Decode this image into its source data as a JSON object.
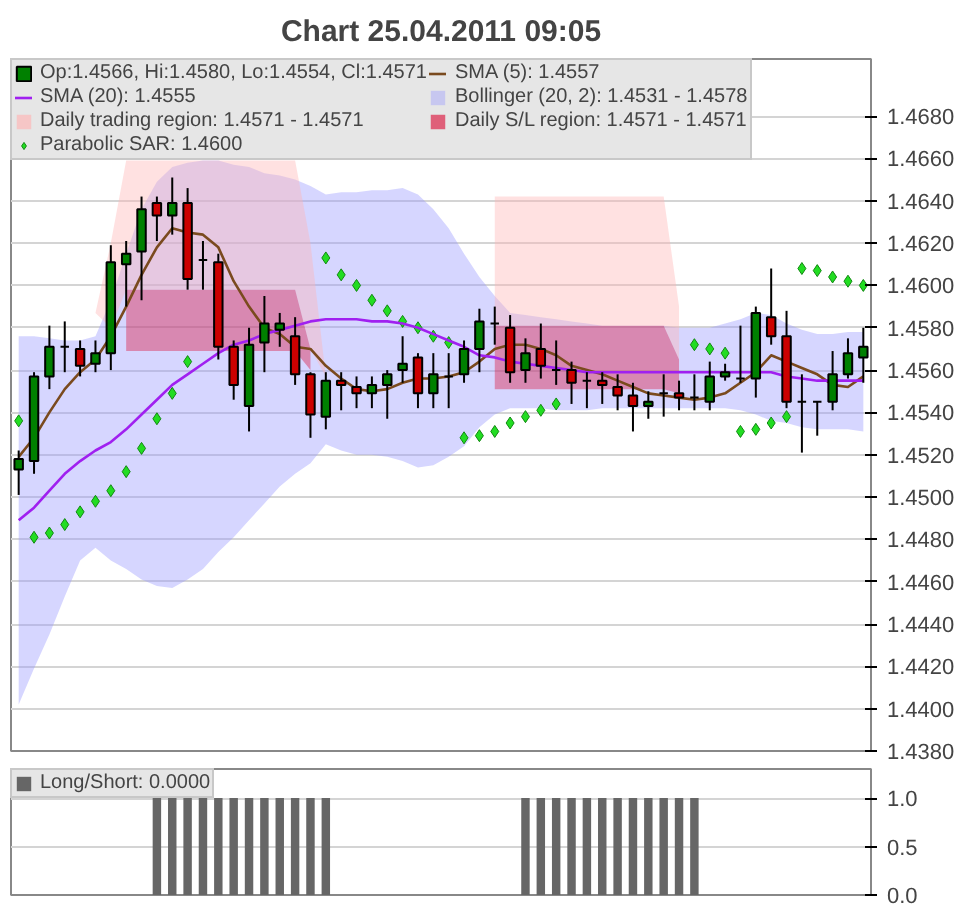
{
  "chart_data": [
    {
      "type": "candlestick",
      "title": "Chart 25.04.2011 09:05",
      "categories": [
        null,
        null,
        null,
        null,
        null,
        null,
        null,
        null,
        null,
        null,
        null,
        null,
        null,
        null,
        null,
        null,
        null,
        null,
        null,
        null,
        null,
        null,
        null,
        null,
        null,
        null,
        null,
        null,
        null,
        null,
        null,
        null,
        null,
        null,
        null,
        null,
        null,
        null,
        null,
        null,
        null,
        null,
        null,
        null,
        null,
        null,
        null,
        null,
        null,
        null,
        null,
        null,
        null,
        null,
        null,
        null
      ],
      "ylim": [
        1.438,
        1.4707
      ],
      "yticks": [
        {
          "value": 1.438,
          "label": "1.4380"
        },
        {
          "value": 1.44,
          "label": "1.4400"
        },
        {
          "value": 1.442,
          "label": "1.4420"
        },
        {
          "value": 1.444,
          "label": "1.4440"
        },
        {
          "value": 1.446,
          "label": "1.4460"
        },
        {
          "value": 1.448,
          "label": "1.4480"
        },
        {
          "value": 1.45,
          "label": "1.4500"
        },
        {
          "value": 1.452,
          "label": "1.4520"
        },
        {
          "value": 1.454,
          "label": "1.4540"
        },
        {
          "value": 1.456,
          "label": "1.4560"
        },
        {
          "value": 1.458,
          "label": "1.4580"
        },
        {
          "value": 1.46,
          "label": "1.4600"
        },
        {
          "value": 1.462,
          "label": "1.4620"
        },
        {
          "value": 1.464,
          "label": "1.4640"
        },
        {
          "value": 1.466,
          "label": "1.4660"
        },
        {
          "value": 1.468,
          "label": "1.4680"
        }
      ],
      "grid": "y",
      "legend": "top left",
      "series": [
        {
          "name": "Bollinger (20, 2): 1.4531 - 1.4578",
          "type": "line",
          "color": "#9999ff",
          "values": [
            null,
            null,
            null,
            null,
            null,
            null,
            null,
            null,
            null,
            null,
            null,
            null,
            null,
            null,
            null,
            null,
            null,
            null,
            null,
            null,
            null,
            null,
            null,
            null,
            null,
            null,
            null,
            null,
            null,
            null,
            null,
            null,
            null,
            null,
            null,
            null,
            null,
            null,
            null,
            null,
            null,
            null,
            null,
            null,
            null,
            null,
            null,
            null,
            null,
            null,
            null,
            null,
            null,
            null,
            null,
            null
          ],
          "upper": [
            1.4576,
            1.4576,
            1.4575,
            1.4574,
            1.4574,
            1.4576,
            1.4593,
            1.4615,
            1.4636,
            1.4649,
            1.4656,
            1.4658,
            1.4659,
            1.4659,
            1.4657,
            1.4656,
            1.4653,
            1.4652,
            1.465,
            1.4647,
            1.4643,
            1.4644,
            1.4644,
            1.4645,
            1.4645,
            1.4646,
            1.4643,
            1.4636,
            1.4627,
            1.4615,
            1.4604,
            1.4595,
            1.4587,
            1.4586,
            1.4585,
            1.4584,
            1.4583,
            1.4582,
            1.4581,
            1.4581,
            1.4581,
            1.4581,
            1.4581,
            1.458,
            1.458,
            1.458,
            1.4582,
            1.4584,
            1.4587,
            1.4586,
            1.4582,
            1.4579,
            1.4577,
            1.4577,
            1.4578,
            1.4578
          ],
          "lower": [
            1.4402,
            1.4419,
            1.4435,
            1.4453,
            1.447,
            1.4476,
            1.447,
            1.4466,
            1.4461,
            1.4458,
            1.4457,
            1.4461,
            1.4466,
            1.4474,
            1.4481,
            1.4489,
            1.4497,
            1.4505,
            1.4511,
            1.4516,
            1.4525,
            1.4522,
            1.452,
            1.452,
            1.4519,
            1.4517,
            1.4514,
            1.4515,
            1.4519,
            1.4524,
            1.4533,
            1.4539,
            1.4542,
            1.4542,
            1.4542,
            1.4541,
            1.4541,
            1.4541,
            1.4542,
            1.4542,
            1.4542,
            1.4542,
            1.4542,
            1.4542,
            1.4542,
            1.4542,
            1.4542,
            1.4541,
            1.4539,
            1.4536,
            1.4535,
            1.4533,
            1.4532,
            1.4532,
            1.4532,
            1.4531
          ]
        },
        {
          "name": "Parabolic SAR: 1.4600",
          "type": "scatter",
          "marker": "diamond",
          "color": "#22dd22",
          "values": [
            1.4536,
            1.4481,
            1.4483,
            1.4487,
            1.4493,
            1.4498,
            1.4503,
            1.4512,
            1.4523,
            1.4537,
            1.4549,
            1.4564,
            null,
            null,
            null,
            null,
            null,
            null,
            null,
            null,
            1.4613,
            1.4605,
            1.46,
            1.4593,
            1.4588,
            1.4583,
            1.458,
            1.4576,
            1.4573,
            1.4528,
            1.4529,
            1.4531,
            1.4535,
            1.4538,
            1.4541,
            1.4544,
            null,
            null,
            null,
            null,
            null,
            null,
            null,
            null,
            1.4572,
            1.457,
            1.4568,
            1.4531,
            1.4532,
            1.4535,
            1.4538,
            1.4608,
            1.4607,
            1.4604,
            1.4602,
            1.46
          ]
        },
        {
          "name": "Daily trading region: 1.4571 - 1.4571",
          "type": "line",
          "color": "#ffb4b4",
          "values": [
            null,
            null,
            null,
            null,
            null,
            null,
            null,
            null,
            null,
            null,
            null,
            null,
            null,
            null,
            null,
            null,
            null,
            null,
            null,
            null,
            null,
            null,
            null,
            null,
            null,
            null,
            null,
            null,
            null,
            null,
            null,
            null,
            null,
            null,
            null,
            null,
            null,
            null,
            null,
            null,
            null,
            null,
            null,
            null,
            null,
            null,
            null,
            null,
            null,
            null,
            null,
            null,
            null,
            null,
            null,
            null
          ],
          "upper": [
            null,
            null,
            null,
            null,
            null,
            1.4587,
            1.462,
            1.4659,
            1.4659,
            1.4659,
            1.4659,
            1.4659,
            1.4659,
            1.4659,
            1.4659,
            1.4659,
            1.4659,
            1.4659,
            1.4659,
            1.462,
            1.4557,
            null,
            null,
            null,
            null,
            null,
            null,
            null,
            null,
            null,
            null,
            1.4642,
            1.4642,
            1.4642,
            1.4642,
            1.4642,
            1.4642,
            1.4642,
            1.4642,
            1.4642,
            1.4642,
            1.4642,
            1.4642,
            1.459,
            null,
            null,
            null,
            null,
            null,
            null,
            null,
            null,
            null,
            null,
            null,
            null
          ],
          "lower": [
            null,
            null,
            null,
            null,
            null,
            1.4587,
            1.458,
            1.4598,
            1.4598,
            1.4598,
            1.4598,
            1.4598,
            1.4598,
            1.4598,
            1.4598,
            1.4598,
            1.4598,
            1.4598,
            1.4598,
            1.457,
            1.4557,
            null,
            null,
            null,
            null,
            null,
            null,
            null,
            null,
            null,
            null,
            1.4581,
            1.4581,
            1.4581,
            1.4581,
            1.4581,
            1.4581,
            1.4581,
            1.4581,
            1.4581,
            1.4581,
            1.4581,
            1.4581,
            1.4565,
            null,
            null,
            null,
            null,
            null,
            null,
            null,
            null,
            null,
            null,
            null,
            null
          ]
        },
        {
          "name": "Daily S/L region: 1.4571 - 1.4571",
          "type": "line",
          "color": "#dc143c",
          "values": [
            null,
            null,
            null,
            null,
            null,
            null,
            null,
            null,
            null,
            null,
            null,
            null,
            null,
            null,
            null,
            null,
            null,
            null,
            null,
            null,
            null,
            null,
            null,
            null,
            null,
            null,
            null,
            null,
            null,
            null,
            null,
            null,
            null,
            null,
            null,
            null,
            null,
            null,
            null,
            null,
            null,
            null,
            null,
            null,
            null,
            null,
            null,
            null,
            null,
            null,
            null,
            null,
            null,
            null,
            null,
            null
          ],
          "upper": [
            null,
            null,
            null,
            null,
            null,
            null,
            null,
            1.4598,
            1.4598,
            1.4598,
            1.4598,
            1.4598,
            1.4598,
            1.4598,
            1.4598,
            1.4598,
            1.4598,
            1.4598,
            1.4598,
            1.457,
            null,
            null,
            null,
            null,
            null,
            null,
            null,
            null,
            null,
            null,
            null,
            1.4581,
            1.4581,
            1.4581,
            1.4581,
            1.4581,
            1.4581,
            1.4581,
            1.4581,
            1.4581,
            1.4581,
            1.4581,
            1.4581,
            1.4565,
            null,
            null,
            null,
            null,
            null,
            null,
            null,
            null,
            null,
            null,
            null,
            null
          ],
          "lower": [
            null,
            null,
            null,
            null,
            null,
            null,
            null,
            1.4569,
            1.4569,
            1.4569,
            1.4569,
            1.4569,
            1.4569,
            1.4569,
            1.4569,
            1.4569,
            1.4569,
            1.4569,
            1.4569,
            1.456,
            null,
            null,
            null,
            null,
            null,
            null,
            null,
            null,
            null,
            null,
            null,
            1.4551,
            1.4551,
            1.4551,
            1.4551,
            1.4551,
            1.4551,
            1.4551,
            1.4551,
            1.4551,
            1.4551,
            1.4551,
            1.4551,
            1.4549,
            null,
            null,
            null,
            null,
            null,
            null,
            null,
            null,
            null,
            null,
            null,
            null
          ]
        },
        {
          "name": "SMA (5): 1.4557",
          "type": "line",
          "color": "#7a4a1e",
          "values": [
            1.4519,
            1.4528,
            1.454,
            1.4551,
            1.4559,
            1.4565,
            1.4576,
            1.459,
            1.4605,
            1.4618,
            1.4627,
            1.4625,
            1.4624,
            1.4618,
            1.4602,
            1.459,
            1.458,
            1.4577,
            1.4571,
            1.457,
            1.4562,
            1.4556,
            1.4551,
            1.455,
            1.4551,
            1.4554,
            1.4556,
            1.4556,
            1.4557,
            1.4559,
            1.4564,
            1.457,
            1.4572,
            1.4572,
            1.457,
            1.4567,
            1.4562,
            1.456,
            1.4558,
            1.4555,
            1.4552,
            1.4549,
            1.4548,
            1.4547,
            1.4546,
            1.4547,
            1.4549,
            1.4554,
            1.4559,
            1.4567,
            1.4564,
            1.4561,
            1.4558,
            1.4553,
            1.4552,
            1.4557
          ]
        },
        {
          "name": "SMA (20): 1.4555",
          "type": "line",
          "color": "#a020f0",
          "values": [
            1.4489,
            1.4495,
            1.4503,
            1.4511,
            1.4517,
            1.4522,
            1.4526,
            1.4532,
            1.4539,
            1.4546,
            1.4553,
            1.4558,
            1.4563,
            1.4568,
            1.4572,
            1.4574,
            1.4577,
            1.4579,
            1.4581,
            1.4583,
            1.4584,
            1.4584,
            1.4584,
            1.4583,
            1.4583,
            1.4582,
            1.458,
            1.4577,
            1.4574,
            1.4571,
            1.4567,
            1.4566,
            1.4564,
            1.4563,
            1.4562,
            1.4561,
            1.456,
            1.4559,
            1.4559,
            1.4559,
            1.4559,
            1.4559,
            1.4559,
            1.4559,
            1.4559,
            1.4559,
            1.4559,
            1.4559,
            1.4559,
            1.4559,
            1.4557,
            1.4556,
            1.4555,
            1.4555,
            1.4555,
            1.4555
          ]
        },
        {
          "name": "Op:1.4566, Hi:1.4580, Lo:1.4554, Cl:1.4571",
          "type": "candlestick",
          "color": "#006600",
          "colors": [
            "#008000",
            "#008000",
            "#008000",
            "#000000",
            "#cc0000",
            "#008000",
            "#008000",
            "#008000",
            "#008000",
            "#cc0000",
            "#008000",
            "#cc0000",
            "#000000",
            "#cc0000",
            "#cc0000",
            "#008000",
            "#008000",
            "#008000",
            "#cc0000",
            "#cc0000",
            "#008000",
            "#cc0000",
            "#cc0000",
            "#008000",
            "#008000",
            "#008000",
            "#cc0000",
            "#008000",
            "#000000",
            "#008000",
            "#008000",
            "#000000",
            "#cc0000",
            "#008000",
            "#cc0000",
            "#000000",
            "#cc0000",
            "#000000",
            "#cc0000",
            "#cc0000",
            "#cc0000",
            "#008000",
            "#000000",
            "#cc0000",
            "#000000",
            "#008000",
            "#008000",
            "#000000",
            "#008000",
            "#cc0000",
            "#cc0000",
            "#000000",
            "#000000",
            "#008000",
            "#008000",
            "#008000"
          ],
          "ohlc": [
            [
              1.4513,
              1.4522,
              1.4501,
              1.4518
            ],
            [
              1.4517,
              1.4559,
              1.4511,
              1.4557
            ],
            [
              1.4557,
              1.4581,
              1.4551,
              1.4571
            ],
            [
              1.4571,
              1.4583,
              1.4559,
              1.4571
            ],
            [
              1.457,
              1.4574,
              1.4557,
              1.4562
            ],
            [
              1.4563,
              1.4574,
              1.4559,
              1.4568
            ],
            [
              1.4568,
              1.4619,
              1.456,
              1.4611
            ],
            [
              1.461,
              1.4621,
              1.459,
              1.4615
            ],
            [
              1.4616,
              1.4642,
              1.4593,
              1.4636
            ],
            [
              1.4639,
              1.4642,
              1.4621,
              1.4633
            ],
            [
              1.4633,
              1.4651,
              1.4624,
              1.4639
            ],
            [
              1.4639,
              1.4646,
              1.4598,
              1.4603
            ],
            [
              1.4612,
              1.4621,
              1.4598,
              1.4612
            ],
            [
              1.4611,
              1.4615,
              1.4565,
              1.4571
            ],
            [
              1.4571,
              1.4574,
              1.4546,
              1.4553
            ],
            [
              1.4543,
              1.458,
              1.4531,
              1.4572
            ],
            [
              1.4573,
              1.4595,
              1.4559,
              1.4582
            ],
            [
              1.4579,
              1.4587,
              1.4571,
              1.4582
            ],
            [
              1.4576,
              1.4585,
              1.4553,
              1.4558
            ],
            [
              1.4558,
              1.4559,
              1.4528,
              1.4539
            ],
            [
              1.4538,
              1.4559,
              1.4532,
              1.4555
            ],
            [
              1.4555,
              1.4559,
              1.4541,
              1.4553
            ],
            [
              1.4552,
              1.4557,
              1.4542,
              1.4549
            ],
            [
              1.4549,
              1.4557,
              1.4542,
              1.4553
            ],
            [
              1.4553,
              1.456,
              1.4537,
              1.4558
            ],
            [
              1.456,
              1.4576,
              1.4554,
              1.4563
            ],
            [
              1.4566,
              1.4568,
              1.4542,
              1.4549
            ],
            [
              1.4549,
              1.4568,
              1.4542,
              1.4558
            ],
            [
              1.4557,
              1.4568,
              1.4542,
              1.4557
            ],
            [
              1.4558,
              1.4574,
              1.4554,
              1.457
            ],
            [
              1.457,
              1.4589,
              1.4559,
              1.4583
            ],
            [
              1.4582,
              1.459,
              1.4572,
              1.4582
            ],
            [
              1.458,
              1.4586,
              1.4554,
              1.4559
            ],
            [
              1.456,
              1.4575,
              1.4554,
              1.4568
            ],
            [
              1.457,
              1.4582,
              1.4556,
              1.4562
            ],
            [
              1.456,
              1.4574,
              1.4553,
              1.456
            ],
            [
              1.456,
              1.4564,
              1.4544,
              1.4554
            ],
            [
              1.4555,
              1.4559,
              1.4542,
              1.4555
            ],
            [
              1.4555,
              1.4559,
              1.4544,
              1.4553
            ],
            [
              1.4552,
              1.4558,
              1.4541,
              1.4548
            ],
            [
              1.4548,
              1.4554,
              1.4531,
              1.4543
            ],
            [
              1.4543,
              1.455,
              1.4537,
              1.4545
            ],
            [
              1.4549,
              1.4558,
              1.4538,
              1.4549
            ],
            [
              1.4549,
              1.4555,
              1.4541,
              1.4547
            ],
            [
              1.4547,
              1.4558,
              1.4541,
              1.4547
            ],
            [
              1.4545,
              1.4564,
              1.4541,
              1.4557
            ],
            [
              1.4557,
              1.4563,
              1.4555,
              1.4559
            ],
            [
              1.4556,
              1.4581,
              1.4554,
              1.4556
            ],
            [
              1.4556,
              1.459,
              1.4547,
              1.4587
            ],
            [
              1.4585,
              1.4608,
              1.4572,
              1.4576
            ],
            [
              1.4576,
              1.4588,
              1.4542,
              1.4545
            ],
            [
              1.4545,
              1.4558,
              1.4521,
              1.4545
            ],
            [
              1.4545,
              1.4545,
              1.4529,
              1.4545
            ],
            [
              1.4545,
              1.4569,
              1.4541,
              1.4558
            ],
            [
              1.4558,
              1.4575,
              1.4556,
              1.4568
            ],
            [
              1.4566,
              1.458,
              1.4554,
              1.4571
            ]
          ]
        }
      ]
    },
    {
      "type": "bar",
      "categories": [
        null,
        null,
        null,
        null,
        null,
        null,
        null,
        null,
        null,
        null,
        null,
        null,
        null,
        null,
        null,
        null,
        null,
        null,
        null,
        null,
        null,
        null,
        null,
        null,
        null,
        null,
        null,
        null,
        null,
        null,
        null,
        null,
        null,
        null,
        null,
        null,
        null,
        null,
        null,
        null,
        null,
        null,
        null,
        null,
        null,
        null,
        null,
        null,
        null,
        null,
        null,
        null,
        null,
        null,
        null,
        null
      ],
      "ylim": [
        0,
        1.3
      ],
      "yticks": [
        {
          "value": 0,
          "label": "0.0"
        },
        {
          "value": 0.5,
          "label": "0.5"
        },
        {
          "value": 1,
          "label": "1.0"
        }
      ],
      "grid": "y",
      "legend": "top left",
      "series": [
        {
          "name": "Long/Short: 0.0000",
          "color": "#666666",
          "values": [
            0,
            0,
            0,
            0,
            0,
            0,
            0,
            0,
            0,
            1,
            1,
            1,
            1,
            1,
            1,
            1,
            1,
            1,
            1,
            1,
            1,
            0,
            0,
            0,
            0,
            0,
            0,
            0,
            0,
            0,
            0,
            0,
            0,
            1,
            1,
            1,
            1,
            1,
            1,
            1,
            1,
            1,
            1,
            1,
            1,
            0,
            0,
            0,
            0,
            0,
            0,
            0,
            0,
            0,
            0,
            0
          ]
        }
      ]
    }
  ]
}
